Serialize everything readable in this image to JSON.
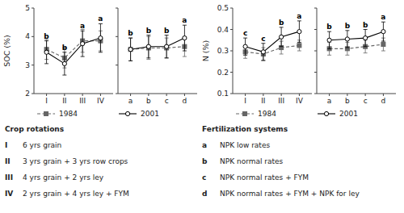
{
  "chart_data": [
    {
      "type": "line",
      "ylabel": "SOC (%)",
      "categories": [
        "I",
        "II",
        "III",
        "IV"
      ],
      "ylim": [
        2.0,
        5.0
      ],
      "yticks": [
        2,
        3,
        4,
        5
      ],
      "legend": "bottom",
      "series": [
        {
          "name": "1984",
          "color": "#666666",
          "line_style": "dashed",
          "marker": "square",
          "values": [
            3.55,
            3.25,
            3.85,
            3.85
          ],
          "errors": [
            0.35,
            0.35,
            0.4,
            0.35
          ]
        },
        {
          "name": "2001",
          "color": "#000000",
          "line_style": "solid",
          "marker": "circle",
          "values": [
            3.45,
            3.05,
            3.75,
            3.95
          ],
          "errors": [
            0.4,
            0.4,
            0.45,
            0.5
          ],
          "labels": [
            "b",
            "b",
            "a",
            "a"
          ]
        }
      ],
      "key": {
        "title": "Crop rotations",
        "items": [
          {
            "symbol": "I",
            "text": "6 yrs grain"
          },
          {
            "symbol": "II",
            "text": "3 yrs grain + 3 yrs row crops"
          },
          {
            "symbol": "III",
            "text": "4 yrs grain + 2 yrs ley"
          },
          {
            "symbol": "IV",
            "text": "2 yrs grain + 4 yrs ley + FYM"
          }
        ]
      }
    },
    {
      "type": "line",
      "categories": [
        "a",
        "b",
        "c",
        "d"
      ],
      "ylim": [
        2.0,
        5.0
      ],
      "yticks": [
        2,
        3,
        4,
        5
      ],
      "tick_labels": "x",
      "series": [
        {
          "name": "1984",
          "color": "#666666",
          "line_style": "dashed",
          "marker": "square",
          "values": [
            3.55,
            3.6,
            3.6,
            3.65
          ],
          "errors": [
            0.4,
            0.4,
            0.35,
            0.35
          ]
        },
        {
          "name": "2001",
          "color": "#000000",
          "line_style": "solid",
          "marker": "circle",
          "values": [
            3.55,
            3.65,
            3.65,
            3.95
          ],
          "errors": [
            0.4,
            0.4,
            0.4,
            0.45
          ],
          "labels": [
            "b",
            "b",
            "b",
            "a"
          ]
        }
      ],
      "key": {
        "title": "Fertilization systems",
        "items": [
          {
            "symbol": "a",
            "text": "NPK low rates"
          },
          {
            "symbol": "b",
            "text": "NPK normal rates"
          },
          {
            "symbol": "c",
            "text": "NPK normal rates + FYM"
          },
          {
            "symbol": "d",
            "text": "NPK normal rates + FYM + NPK for ley"
          }
        ]
      }
    },
    {
      "type": "line",
      "ylabel": "N (%)",
      "categories": [
        "I",
        "II",
        "III",
        "IV"
      ],
      "ylim": [
        0.1,
        0.5
      ],
      "yticks": [
        0.1,
        0.2,
        0.3,
        0.4,
        0.5
      ],
      "legend": "bottom",
      "series": [
        {
          "name": "1984",
          "color": "#666666",
          "line_style": "dashed",
          "marker": "square",
          "values": [
            0.295,
            0.285,
            0.315,
            0.325
          ],
          "errors": [
            0.03,
            0.03,
            0.03,
            0.025
          ]
        },
        {
          "name": "2001",
          "color": "#000000",
          "line_style": "solid",
          "marker": "circle",
          "values": [
            0.32,
            0.295,
            0.365,
            0.39
          ],
          "errors": [
            0.04,
            0.04,
            0.045,
            0.05
          ],
          "labels": [
            "c",
            "c",
            "b",
            "a"
          ]
        }
      ]
    },
    {
      "type": "line",
      "categories": [
        "a",
        "b",
        "c",
        "d"
      ],
      "ylim": [
        0.1,
        0.5
      ],
      "yticks": [
        0.1,
        0.2,
        0.3,
        0.4,
        0.5
      ],
      "tick_labels": "x",
      "series": [
        {
          "name": "1984",
          "color": "#666666",
          "line_style": "dashed",
          "marker": "square",
          "values": [
            0.31,
            0.31,
            0.32,
            0.33
          ],
          "errors": [
            0.03,
            0.03,
            0.03,
            0.03
          ]
        },
        {
          "name": "2001",
          "color": "#000000",
          "line_style": "solid",
          "marker": "circle",
          "values": [
            0.35,
            0.355,
            0.36,
            0.39
          ],
          "errors": [
            0.04,
            0.04,
            0.04,
            0.045
          ],
          "labels": [
            "b",
            "b",
            "b",
            "a"
          ]
        }
      ]
    }
  ]
}
